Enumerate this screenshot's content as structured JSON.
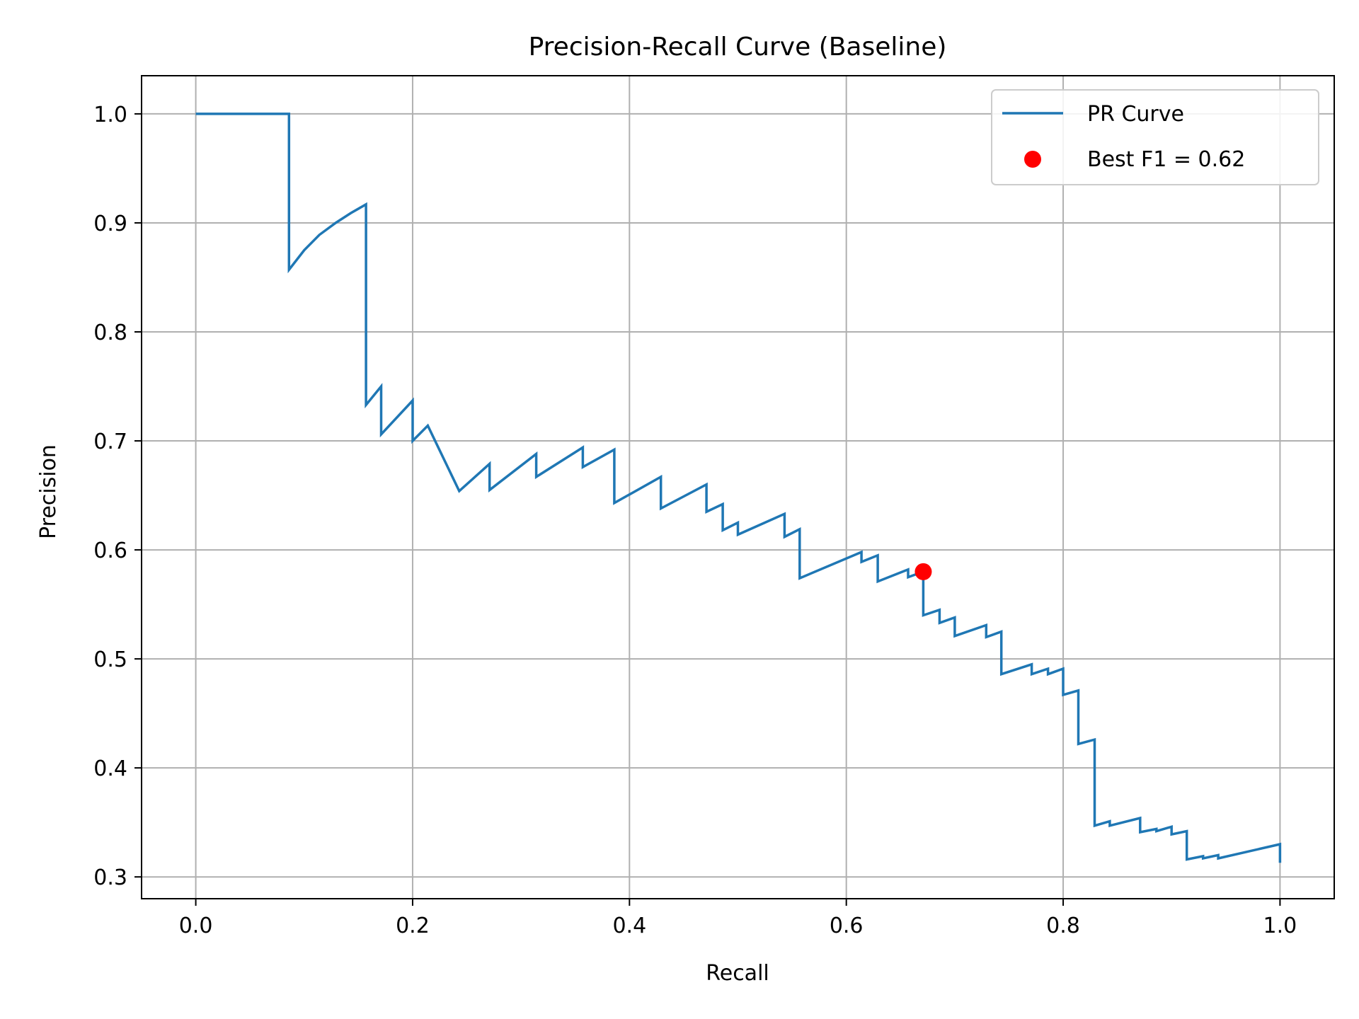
{
  "chart_data": {
    "type": "line",
    "title": "Precision-Recall Curve (Baseline)",
    "xlabel": "Recall",
    "ylabel": "Precision",
    "xlim": [
      -0.05,
      1.05
    ],
    "ylim": [
      0.28,
      1.035
    ],
    "xticks": [
      0.0,
      0.2,
      0.4,
      0.6,
      0.8,
      1.0
    ],
    "xtick_labels": [
      "0.0",
      "0.2",
      "0.4",
      "0.6",
      "0.8",
      "1.0"
    ],
    "yticks": [
      0.3,
      0.4,
      0.5,
      0.6,
      0.7,
      0.8,
      0.9,
      1.0
    ],
    "ytick_labels": [
      "0.3",
      "0.4",
      "0.5",
      "0.6",
      "0.7",
      "0.8",
      "0.9",
      "1.0"
    ],
    "grid": true,
    "legend_position": "top-right",
    "colors": {
      "curve": "#1f77b4",
      "best": "#ff0000"
    },
    "series": [
      {
        "name": "PR Curve",
        "kind": "line",
        "points": [
          [
            0.0,
            1.0
          ],
          [
            0.086,
            1.0
          ],
          [
            0.086,
            0.857
          ],
          [
            0.1,
            0.875
          ],
          [
            0.114,
            0.889
          ],
          [
            0.129,
            0.9
          ],
          [
            0.143,
            0.909
          ],
          [
            0.157,
            0.917
          ],
          [
            0.157,
            0.733
          ],
          [
            0.171,
            0.75
          ],
          [
            0.171,
            0.706
          ],
          [
            0.2,
            0.737
          ],
          [
            0.2,
            0.7
          ],
          [
            0.214,
            0.714
          ],
          [
            0.243,
            0.654
          ],
          [
            0.271,
            0.679
          ],
          [
            0.271,
            0.655
          ],
          [
            0.314,
            0.688
          ],
          [
            0.314,
            0.667
          ],
          [
            0.357,
            0.694
          ],
          [
            0.357,
            0.676
          ],
          [
            0.386,
            0.692
          ],
          [
            0.386,
            0.643
          ],
          [
            0.429,
            0.667
          ],
          [
            0.429,
            0.638
          ],
          [
            0.471,
            0.66
          ],
          [
            0.471,
            0.635
          ],
          [
            0.486,
            0.642
          ],
          [
            0.486,
            0.618
          ],
          [
            0.5,
            0.625
          ],
          [
            0.5,
            0.614
          ],
          [
            0.543,
            0.633
          ],
          [
            0.543,
            0.612
          ],
          [
            0.557,
            0.619
          ],
          [
            0.557,
            0.574
          ],
          [
            0.614,
            0.598
          ],
          [
            0.614,
            0.589
          ],
          [
            0.629,
            0.595
          ],
          [
            0.629,
            0.571
          ],
          [
            0.657,
            0.582
          ],
          [
            0.657,
            0.575
          ],
          [
            0.671,
            0.58
          ],
          [
            0.671,
            0.54
          ],
          [
            0.686,
            0.545
          ],
          [
            0.686,
            0.533
          ],
          [
            0.7,
            0.538
          ],
          [
            0.7,
            0.521
          ],
          [
            0.729,
            0.531
          ],
          [
            0.729,
            0.52
          ],
          [
            0.743,
            0.525
          ],
          [
            0.743,
            0.486
          ],
          [
            0.771,
            0.495
          ],
          [
            0.771,
            0.486
          ],
          [
            0.786,
            0.491
          ],
          [
            0.786,
            0.486
          ],
          [
            0.8,
            0.491
          ],
          [
            0.8,
            0.467
          ],
          [
            0.814,
            0.471
          ],
          [
            0.814,
            0.422
          ],
          [
            0.829,
            0.426
          ],
          [
            0.829,
            0.347
          ],
          [
            0.843,
            0.351
          ],
          [
            0.843,
            0.347
          ],
          [
            0.871,
            0.354
          ],
          [
            0.871,
            0.341
          ],
          [
            0.886,
            0.344
          ],
          [
            0.886,
            0.342
          ],
          [
            0.9,
            0.346
          ],
          [
            0.9,
            0.339
          ],
          [
            0.914,
            0.342
          ],
          [
            0.914,
            0.316
          ],
          [
            0.929,
            0.319
          ],
          [
            0.929,
            0.317
          ],
          [
            0.943,
            0.32
          ],
          [
            0.943,
            0.317
          ],
          [
            1.0,
            0.33
          ],
          [
            1.0,
            0.313
          ]
        ]
      },
      {
        "name": "Best F1 = 0.62",
        "kind": "point",
        "points": [
          [
            0.671,
            0.58
          ]
        ]
      }
    ]
  }
}
